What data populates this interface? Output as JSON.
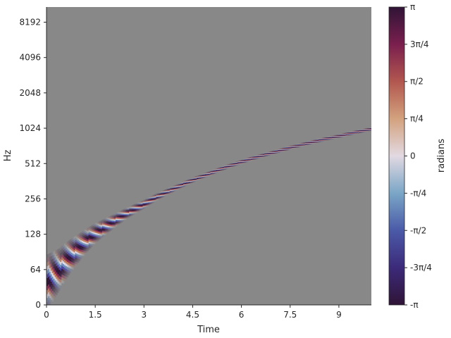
{
  "chart_data": {
    "type": "heatmap",
    "title": "",
    "xlabel": "Time",
    "ylabel": "Hz",
    "xlim": [
      0,
      10
    ],
    "x_ticks": [
      {
        "value": 0,
        "label": "0"
      },
      {
        "value": 1.5,
        "label": "1.5"
      },
      {
        "value": 3,
        "label": "3"
      },
      {
        "value": 4.5,
        "label": "4.5"
      },
      {
        "value": 6,
        "label": "6"
      },
      {
        "value": 7.5,
        "label": "7.5"
      },
      {
        "value": 9,
        "label": "9"
      }
    ],
    "y_scale": "symlog",
    "ylim": [
      0,
      11025
    ],
    "y_ticks": [
      {
        "value": 0,
        "label": "0"
      },
      {
        "value": 64,
        "label": "64"
      },
      {
        "value": 128,
        "label": "128"
      },
      {
        "value": 256,
        "label": "256"
      },
      {
        "value": 512,
        "label": "512"
      },
      {
        "value": 1024,
        "label": "1024"
      },
      {
        "value": 2048,
        "label": "2048"
      },
      {
        "value": 4096,
        "label": "4096"
      },
      {
        "value": 8192,
        "label": "8192"
      }
    ],
    "background_color": "#888888",
    "chirp_ridge": {
      "time": [
        0,
        0.25,
        0.5,
        1,
        1.5,
        2,
        3,
        4,
        5,
        6,
        7,
        8,
        9,
        10
      ],
      "frequency_hz": [
        40,
        55,
        70,
        98,
        130,
        160,
        230,
        320,
        420,
        530,
        640,
        760,
        880,
        1010
      ]
    },
    "colorbar": {
      "label": "radians",
      "colormap": "twilight_shifted",
      "range": [
        -3.14159,
        3.14159
      ],
      "colors": [
        "#2f1436",
        "#4a3f9e",
        "#6b8fbf",
        "#e2d9e2",
        "#c67a5a",
        "#8a2a52",
        "#2f1436"
      ],
      "ticks": [
        {
          "value": 3.14159,
          "label": "π"
        },
        {
          "value": 2.35619,
          "label": "3π/4"
        },
        {
          "value": 1.5708,
          "label": "π/2"
        },
        {
          "value": 0.7854,
          "label": "π/4"
        },
        {
          "value": 0,
          "label": "0"
        },
        {
          "value": -0.7854,
          "label": "-π/4"
        },
        {
          "value": -1.5708,
          "label": "-π/2"
        },
        {
          "value": -2.35619,
          "label": "-3π/4"
        },
        {
          "value": -3.14159,
          "label": "-π"
        }
      ]
    }
  }
}
